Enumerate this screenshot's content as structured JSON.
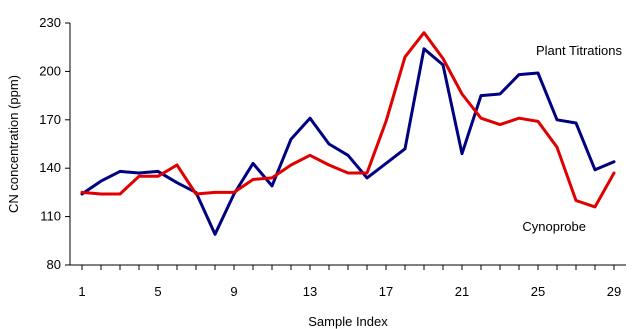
{
  "chart_data": {
    "type": "line",
    "xlabel": "Sample Index",
    "ylabel": "CN concentration (ppm)",
    "xlim": [
      1,
      29
    ],
    "ylim": [
      80,
      230
    ],
    "x": [
      1,
      2,
      3,
      4,
      5,
      6,
      7,
      8,
      9,
      10,
      11,
      12,
      13,
      14,
      15,
      16,
      17,
      18,
      19,
      20,
      21,
      22,
      23,
      24,
      25,
      26,
      27,
      28,
      29
    ],
    "x_tick_labels": [
      "1",
      "5",
      "9",
      "13",
      "17",
      "21",
      "25",
      "29"
    ],
    "x_tick_values": [
      1,
      5,
      9,
      13,
      17,
      21,
      25,
      29
    ],
    "y_tick_values": [
      80,
      110,
      140,
      170,
      200,
      230
    ],
    "y_tick_labels": [
      "80",
      "110",
      "140",
      "170",
      "200",
      "230"
    ],
    "series": [
      {
        "name": "Plant Titrations",
        "color": "#000080",
        "values": [
          124,
          132,
          138,
          137,
          138,
          131,
          125,
          99,
          124,
          143,
          129,
          158,
          171,
          155,
          148,
          134,
          143,
          152,
          214,
          204,
          149,
          185,
          186,
          198,
          199,
          170,
          168,
          139,
          144
        ]
      },
      {
        "name": "Cynoprobe",
        "color": "#e00000",
        "values": [
          125,
          124,
          124,
          135,
          135,
          142,
          124,
          125,
          125,
          133,
          134,
          142,
          148,
          142,
          137,
          137,
          169,
          209,
          224,
          208,
          186,
          171,
          167,
          171,
          169,
          153,
          120,
          116,
          137
        ]
      }
    ]
  }
}
